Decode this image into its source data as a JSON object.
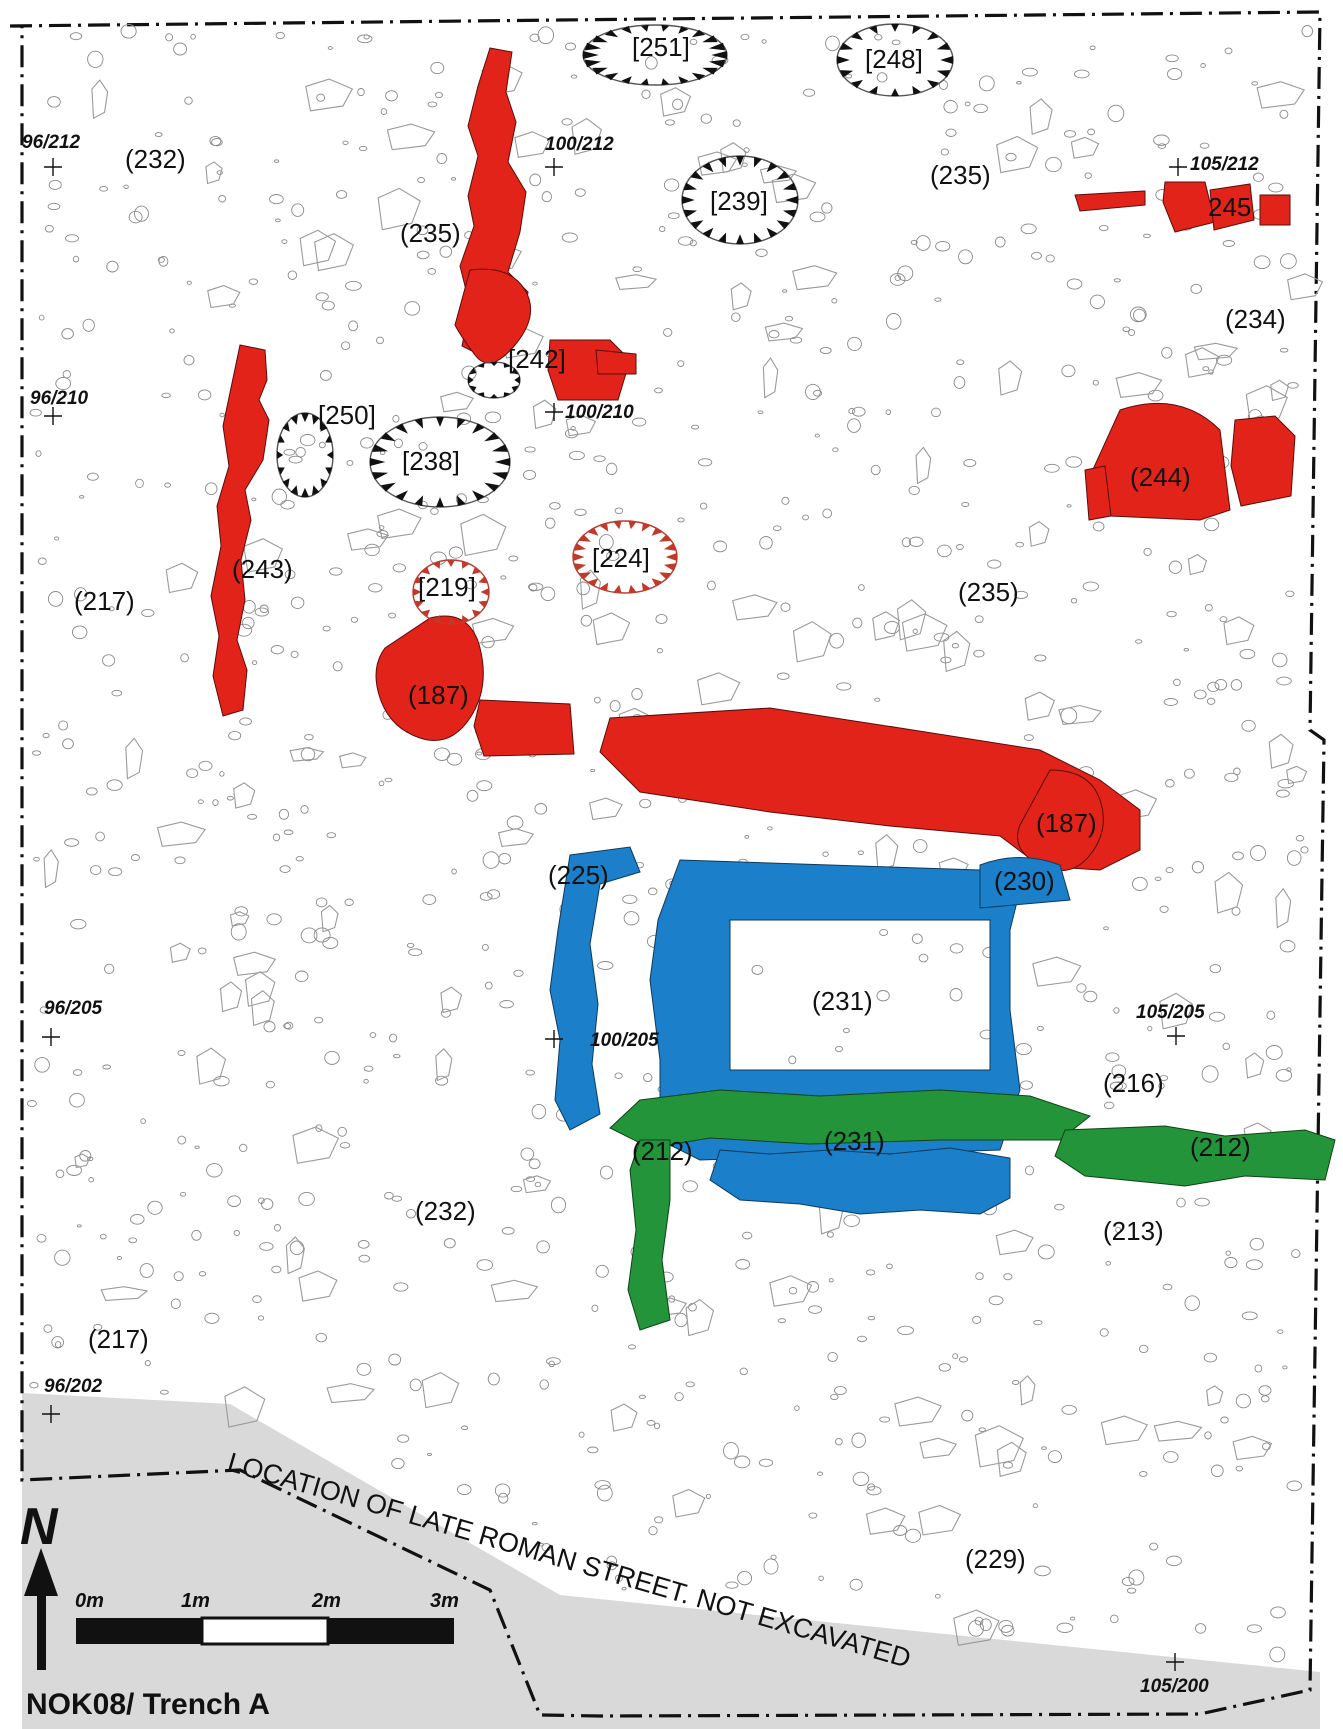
{
  "site_title": "NOK08/ Trench A",
  "street_label": "LOCATION OF LATE ROMAN STREET. NOT EXCAVATED",
  "north_label": "N",
  "scale_bar": {
    "labels": [
      "0m",
      "1m",
      "2m",
      "3m"
    ]
  },
  "grid_points": [
    "96/212",
    "100/212",
    "105/212",
    "96/210",
    "100/210",
    "96/205",
    "100/205",
    "105/205",
    "96/202",
    "105/200"
  ],
  "contexts": [
    "(232)",
    "(235)",
    "(235)",
    "(234)",
    "(244)",
    "(243)",
    "(217)",
    "(187)",
    "(235)",
    "(187)",
    "(225)",
    "(230)",
    "(231)",
    "(216)",
    "(212)",
    "(231)",
    "(212)",
    "(232)",
    "(213)",
    "(217)",
    "(229)"
  ],
  "cuts": [
    "[251]",
    "[248]",
    "[239]",
    "[242]",
    "[250]",
    "[238]",
    "[224]",
    "[219]",
    "245"
  ],
  "colors": {
    "red_walls": "#e2231a",
    "blue_walls": "#1b7fc9",
    "green_walls": "#23943a",
    "street": "#d9d9d9"
  }
}
